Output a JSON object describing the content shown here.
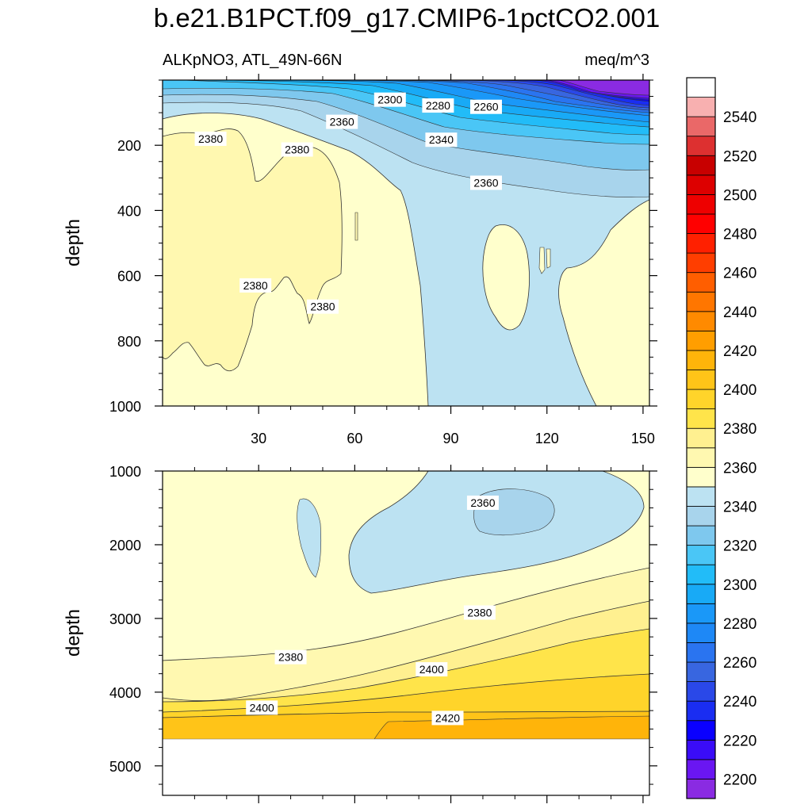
{
  "figure": {
    "title": "b.e21.B1PCT.f09_g17.CMIP6-1pctCO2.001",
    "subtitle_left": "ALKpNO3, ATL_49N-66N",
    "subtitle_right": "meq/m^3"
  },
  "chart_data": [
    {
      "type": "heatmap",
      "panel": "upper",
      "ylabel": "depth",
      "xlabel": "",
      "x_range": [
        0,
        152
      ],
      "y_range": [
        1000,
        0
      ],
      "x_ticks": [
        30,
        60,
        90,
        120,
        150
      ],
      "x_tick_labels": [
        "30",
        "60",
        "90",
        "120",
        "150"
      ],
      "y_ticks": [
        200,
        400,
        600,
        800,
        1000
      ],
      "y_tick_labels": [
        "200",
        "400",
        "600",
        "800",
        "1000"
      ],
      "contour_labels": [
        {
          "text": "2300",
          "x": 71,
          "y": 60
        },
        {
          "text": "2280",
          "x": 86,
          "y": 78
        },
        {
          "text": "2260",
          "x": 101,
          "y": 82
        },
        {
          "text": "2360",
          "x": 56,
          "y": 128
        },
        {
          "text": "2380",
          "x": 15,
          "y": 180
        },
        {
          "text": "2380",
          "x": 42,
          "y": 213
        },
        {
          "text": "2340",
          "x": 87,
          "y": 183
        },
        {
          "text": "2360",
          "x": 101,
          "y": 315
        },
        {
          "text": "2380",
          "x": 29,
          "y": 630
        },
        {
          "text": "2380",
          "x": 50,
          "y": 695
        }
      ]
    },
    {
      "type": "heatmap",
      "panel": "lower",
      "ylabel": "depth",
      "xlabel": "",
      "x_range": [
        0,
        152
      ],
      "y_range": [
        5400,
        1000
      ],
      "x_ticks": [
        30,
        60,
        90,
        120,
        150
      ],
      "y_ticks": [
        1000,
        2000,
        3000,
        4000,
        5000
      ],
      "y_tick_labels": [
        "1000",
        "2000",
        "3000",
        "4000",
        "5000"
      ],
      "contour_labels": [
        {
          "text": "2360",
          "x": 100,
          "y": 1430
        },
        {
          "text": "2380",
          "x": 99,
          "y": 2920
        },
        {
          "text": "2380",
          "x": 40,
          "y": 3525
        },
        {
          "text": "2400",
          "x": 84,
          "y": 3690
        },
        {
          "text": "2400",
          "x": 31,
          "y": 4210
        },
        {
          "text": "2420",
          "x": 89,
          "y": 4350
        }
      ]
    }
  ],
  "colorbar": {
    "levels": [
      2190,
      2200,
      2210,
      2220,
      2230,
      2240,
      2250,
      2260,
      2270,
      2280,
      2290,
      2300,
      2310,
      2320,
      2330,
      2340,
      2350,
      2360,
      2370,
      2380,
      2390,
      2400,
      2410,
      2420,
      2430,
      2440,
      2450,
      2460,
      2470,
      2480,
      2490,
      2500,
      2510,
      2520,
      2530,
      2540,
      2550,
      2560
    ],
    "label_values": [
      "2200",
      "2220",
      "2240",
      "2260",
      "2280",
      "2300",
      "2320",
      "2340",
      "2360",
      "2380",
      "2400",
      "2420",
      "2440",
      "2460",
      "2480",
      "2500",
      "2520",
      "2540"
    ],
    "colors": [
      "#8a2be2",
      "#6a16f2",
      "#3a0cf8",
      "#0a00ff",
      "#1a2df2",
      "#2a48e8",
      "#3866e0",
      "#2a74f0",
      "#1e88f6",
      "#1a98f8",
      "#18aaf6",
      "#22bcf8",
      "#4ac6f6",
      "#7ec8ee",
      "#a8d4ec",
      "#bce2f2",
      "#ffffcc",
      "#fff8b0",
      "#fff090",
      "#ffe44a",
      "#ffd42a",
      "#ffc418",
      "#ffb40a",
      "#ff9e00",
      "#ff8a00",
      "#ff7600",
      "#ff5e00",
      "#ff3e00",
      "#ff2000",
      "#ff0000",
      "#ee0000",
      "#dd0000",
      "#c80000",
      "#dd3030",
      "#ea6868",
      "#f8b0b0"
    ]
  },
  "colors": {
    "deep_purple": "#8a2be2",
    "light_blue": "#bce2f2",
    "pale_yellow": "#ffffcc",
    "yellow": "#fff8b0",
    "mid_yellow": "#fff090",
    "gold": "#ffe44a",
    "orange_yellow": "#ffd42a",
    "orange": "#ffc418"
  }
}
